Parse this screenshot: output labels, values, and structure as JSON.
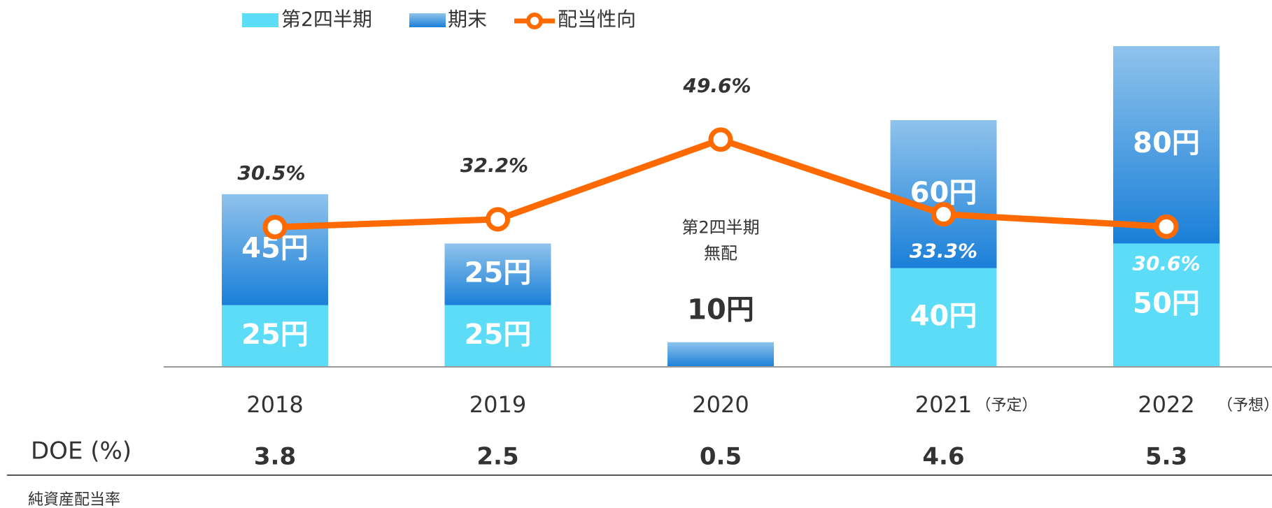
{
  "chart_data": {
    "type": "bar",
    "categories": [
      "2018",
      "2019",
      "2020",
      "2021",
      "2022"
    ],
    "category_notes": [
      null,
      null,
      null,
      "（予定）",
      "（予想）"
    ],
    "series": [
      {
        "name": "第2四半期",
        "color": "#5ddcf8",
        "values": [
          25,
          25,
          null,
          40,
          50
        ],
        "value_labels": [
          "25円",
          "25円",
          null,
          "40円",
          "50円"
        ]
      },
      {
        "name": "期末",
        "color": "#1a7fd8",
        "color_light": "#8fc3ec",
        "values": [
          45,
          25,
          10,
          60,
          80
        ],
        "value_labels": [
          "45円",
          "25円",
          "10円",
          "60円",
          "80円"
        ]
      },
      {
        "name": "配当性向",
        "type": "line",
        "axis": "y2",
        "color": "#ff6a00",
        "values": [
          30.5,
          32.2,
          49.6,
          33.3,
          30.6
        ],
        "value_labels": [
          "30.5%",
          "32.2%",
          "49.6%",
          "33.3%",
          "30.6%"
        ]
      }
    ],
    "stacked": true,
    "ylim": [
      0,
      130
    ],
    "y2lim": [
      0,
      70
    ],
    "annotation": {
      "lines": [
        "第2四半期",
        "無配"
      ]
    },
    "doe": {
      "label": "DOE (%)",
      "sublabel": "純資産配当率",
      "values": [
        3.8,
        2.5,
        0.5,
        4.6,
        5.3
      ]
    }
  }
}
